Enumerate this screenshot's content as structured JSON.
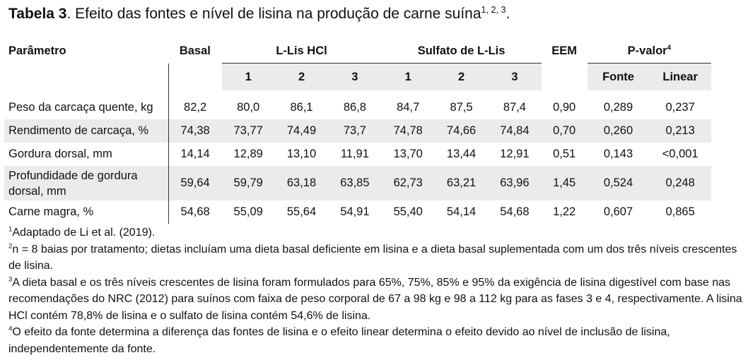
{
  "title": {
    "bold": "Tabela 3",
    "text": ". Efeito das fontes e nível de lisina na produção de carne suína",
    "sup": "1, 2, 3",
    "end": "."
  },
  "table": {
    "headers": {
      "param": "Parâmetro",
      "basal": "Basal",
      "llis": "L-Lis HCl",
      "sulfato": "Sulfato de L-Lis",
      "eem": "EEM",
      "pvalor": "P-valor",
      "pvalor_sup": "4"
    },
    "subheaders": [
      "1",
      "2",
      "3",
      "1",
      "2",
      "3",
      "Fonte",
      "Linear"
    ],
    "rows": [
      {
        "label": "Peso da carcaça quente, kg",
        "values": [
          "82,2",
          "80,0",
          "86,1",
          "86,8",
          "84,7",
          "87,5",
          "87,4",
          "0,90",
          "0,289",
          "0,237"
        ]
      },
      {
        "label": "Rendimento de carcaça, %",
        "values": [
          "74,38",
          "73,77",
          "74,49",
          "73,7",
          "74,78",
          "74,66",
          "74,84",
          "0,70",
          "0,260",
          "0,213"
        ]
      },
      {
        "label": "Gordura dorsal, mm",
        "values": [
          "14,14",
          "12,89",
          "13,10",
          "11,91",
          "13,70",
          "13,44",
          "12,91",
          "0,51",
          "0,143",
          "<0,001"
        ]
      },
      {
        "label": "Profundidade de gordura dorsal, mm",
        "values": [
          "59,64",
          "59,79",
          "63,18",
          "63,85",
          "62,73",
          "63,21",
          "63,96",
          "1,45",
          "0,524",
          "0,248"
        ]
      },
      {
        "label": "Carne magra, %",
        "values": [
          "54,68",
          "55,09",
          "55,64",
          "54,91",
          "55,40",
          "54,14",
          "54,68",
          "1,22",
          "0,607",
          "0,865"
        ]
      }
    ]
  },
  "footnotes": [
    {
      "sup": "1",
      "text": "Adaptado de Li et al. (2019)."
    },
    {
      "sup": "2",
      "text": "n = 8 baias por tratamento; dietas incluíam uma dieta basal deficiente em lisina e a dieta basal suplementada com um dos três níveis crescentes de lisina."
    },
    {
      "sup": "3",
      "text": "A dieta basal e os três níveis crescentes de lisina foram formulados para 65%, 75%, 85% e 95% da exigência de lisina digestível com base nas recomendações do NRC (2012) para suínos com faixa de peso corporal de 67 a 98 kg e 98 a 112 kg para as fases 3 e 4, respectivamente. A lisina HCl contém 78,8% de lisina e o sulfato de lisina contém 54,6% de lisina."
    },
    {
      "sup": "4",
      "text": "O efeito da fonte determina a diferença das fontes de lisina e o efeito linear determina o efeito devido ao nível de inclusão de lisina, independentemente da fonte."
    }
  ]
}
